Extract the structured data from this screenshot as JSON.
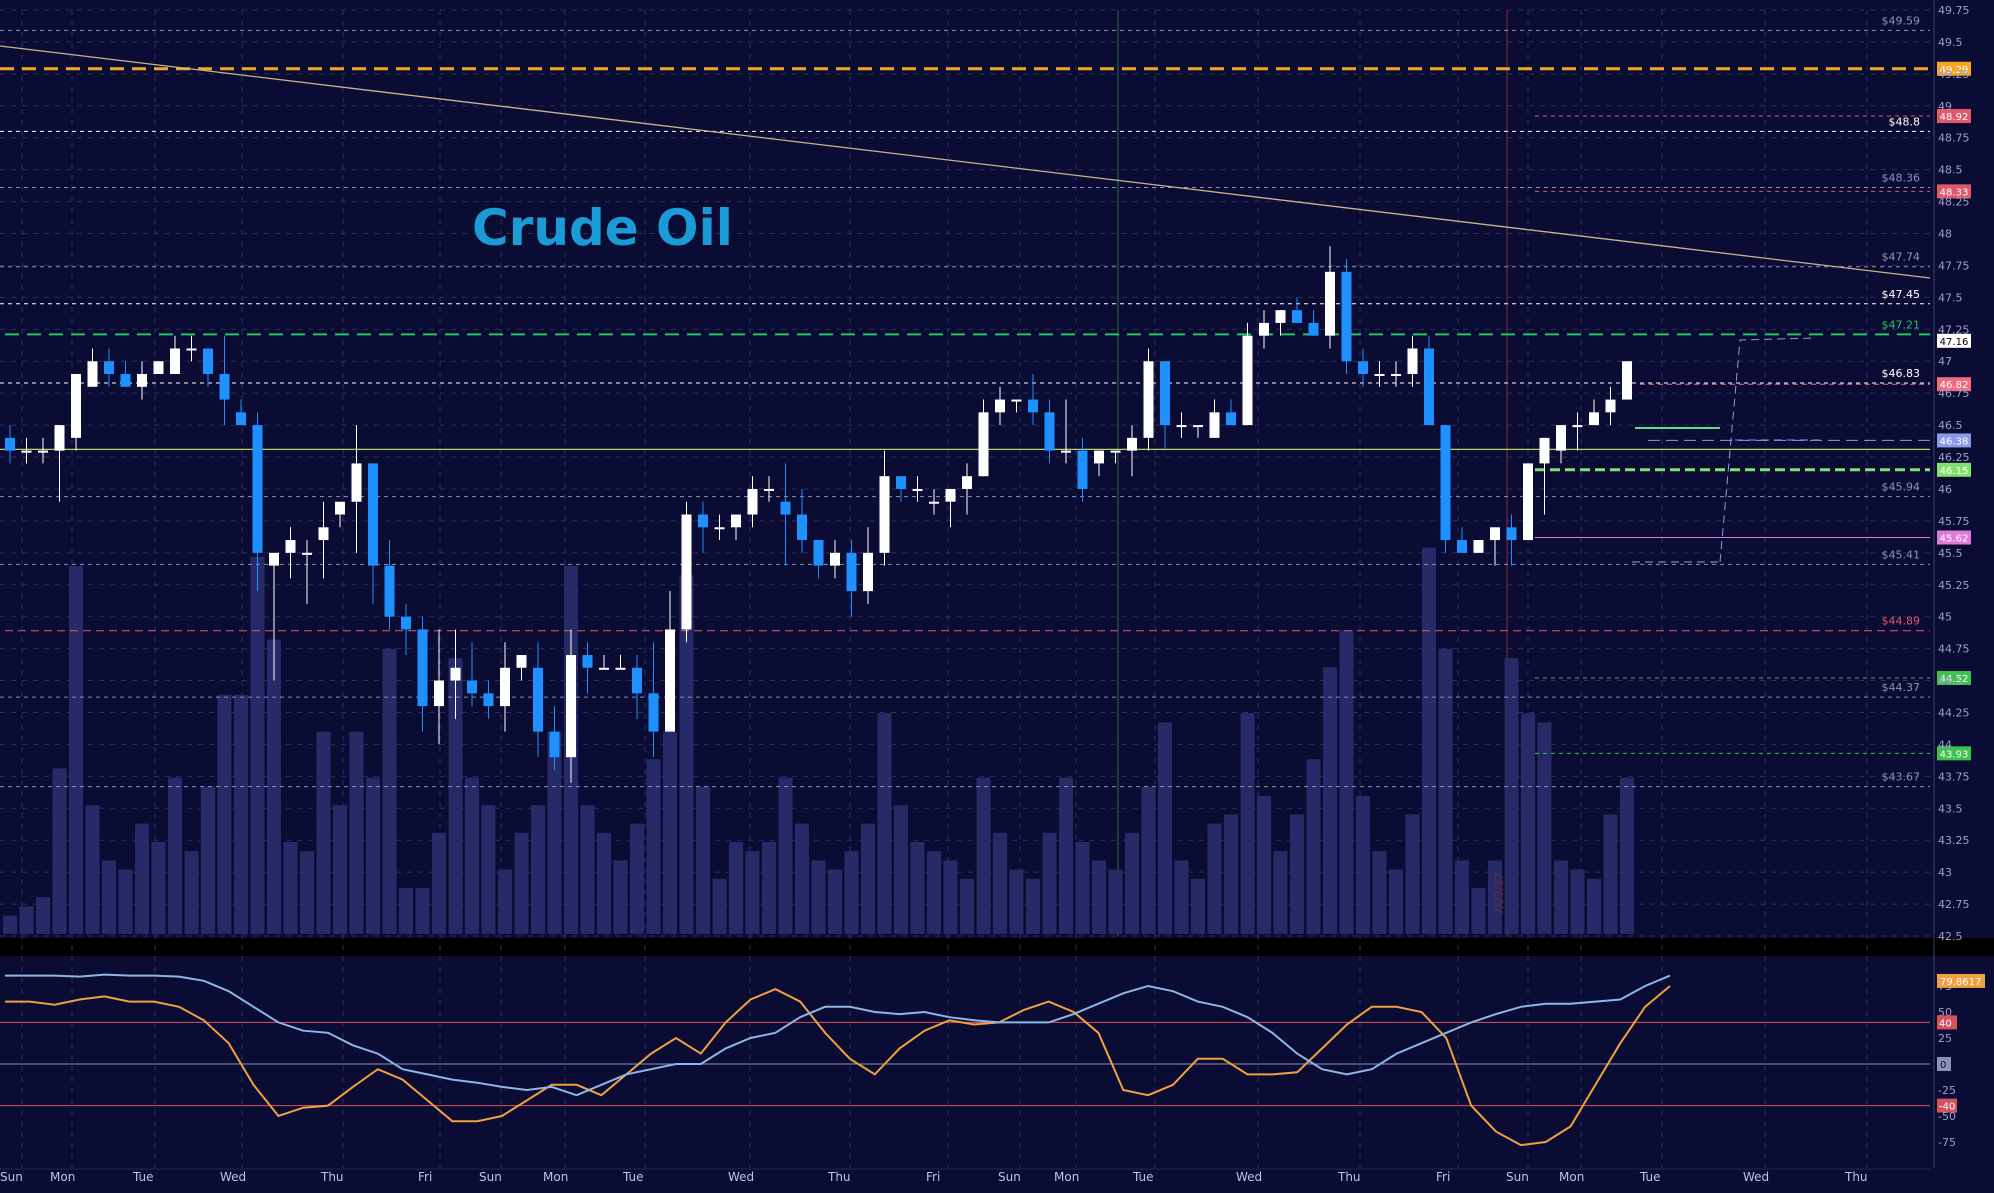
{
  "chart_data": [
    {
      "type": "candlestick",
      "title": "Crude Oil",
      "ylim": [
        42.5,
        49.75
      ],
      "y_ticks": [
        "49.75",
        "49.5",
        "49.25",
        "49",
        "48.75",
        "48.5",
        "48.25",
        "48",
        "47.75",
        "47.5",
        "47.25",
        "47",
        "46.75",
        "46.5",
        "46.25",
        "46",
        "45.75",
        "45.5",
        "45.25",
        "45",
        "44.75",
        "44.5",
        "44.25",
        "44",
        "43.75",
        "43.5",
        "43.25",
        "43",
        "42.75",
        "42.5"
      ],
      "day_labels": [
        "Sun",
        "Mon",
        "Tue",
        "Wed",
        "Thu",
        "Fri",
        "Sun",
        "Mon",
        "Tue",
        "Wed",
        "Thu",
        "Fri",
        "Sun",
        "Mon",
        "Tue",
        "Wed",
        "Thu",
        "Fri",
        "Sun",
        "Mon",
        "Tue",
        "Wed",
        "Thu"
      ],
      "date_marker": "7/23/17",
      "candles": [
        {
          "o": 46.4,
          "h": 46.5,
          "l": 46.2,
          "c": 46.3,
          "v": 2
        },
        {
          "o": 46.3,
          "h": 46.4,
          "l": 46.2,
          "c": 46.3,
          "v": 3
        },
        {
          "o": 46.3,
          "h": 46.4,
          "l": 46.2,
          "c": 46.3,
          "v": 4
        },
        {
          "o": 46.3,
          "h": 46.5,
          "l": 45.9,
          "c": 46.5,
          "v": 18
        },
        {
          "o": 46.4,
          "h": 46.9,
          "l": 46.3,
          "c": 46.9,
          "v": 40
        },
        {
          "o": 46.8,
          "h": 47.1,
          "l": 46.8,
          "c": 47.0,
          "v": 14
        },
        {
          "o": 47.0,
          "h": 47.1,
          "l": 46.8,
          "c": 46.9,
          "v": 8
        },
        {
          "o": 46.9,
          "h": 47.0,
          "l": 46.8,
          "c": 46.8,
          "v": 7
        },
        {
          "o": 46.8,
          "h": 47.0,
          "l": 46.7,
          "c": 46.9,
          "v": 12
        },
        {
          "o": 46.9,
          "h": 47.0,
          "l": 46.9,
          "c": 47.0,
          "v": 10
        },
        {
          "o": 46.9,
          "h": 47.2,
          "l": 46.9,
          "c": 47.1,
          "v": 17
        },
        {
          "o": 47.1,
          "h": 47.2,
          "l": 47.0,
          "c": 47.1,
          "v": 9
        },
        {
          "o": 47.1,
          "h": 47.1,
          "l": 46.8,
          "c": 46.9,
          "v": 16
        },
        {
          "o": 46.9,
          "h": 47.2,
          "l": 46.5,
          "c": 46.7,
          "v": 26
        },
        {
          "o": 46.6,
          "h": 46.7,
          "l": 46.5,
          "c": 46.5,
          "v": 26
        },
        {
          "o": 46.5,
          "h": 46.6,
          "l": 45.2,
          "c": 45.5,
          "v": 41
        },
        {
          "o": 45.4,
          "h": 45.5,
          "l": 44.5,
          "c": 45.5,
          "v": 32
        },
        {
          "o": 45.5,
          "h": 45.7,
          "l": 45.3,
          "c": 45.6,
          "v": 10
        },
        {
          "o": 45.5,
          "h": 45.6,
          "l": 45.1,
          "c": 45.5,
          "v": 9
        },
        {
          "o": 45.6,
          "h": 45.9,
          "l": 45.3,
          "c": 45.7,
          "v": 22
        },
        {
          "o": 45.8,
          "h": 45.9,
          "l": 45.7,
          "c": 45.9,
          "v": 14
        },
        {
          "o": 45.9,
          "h": 46.5,
          "l": 45.5,
          "c": 46.2,
          "v": 22
        },
        {
          "o": 46.2,
          "h": 46.2,
          "l": 45.1,
          "c": 45.4,
          "v": 17
        },
        {
          "o": 45.4,
          "h": 45.6,
          "l": 44.9,
          "c": 45.0,
          "v": 31
        },
        {
          "o": 45.0,
          "h": 45.1,
          "l": 44.7,
          "c": 44.9,
          "v": 5
        },
        {
          "o": 44.9,
          "h": 45.0,
          "l": 44.1,
          "c": 44.3,
          "v": 5
        },
        {
          "o": 44.3,
          "h": 44.9,
          "l": 44.0,
          "c": 44.5,
          "v": 11
        },
        {
          "o": 44.5,
          "h": 44.9,
          "l": 44.2,
          "c": 44.6,
          "v": 30
        },
        {
          "o": 44.5,
          "h": 44.8,
          "l": 44.3,
          "c": 44.4,
          "v": 17
        },
        {
          "o": 44.4,
          "h": 44.5,
          "l": 44.2,
          "c": 44.3,
          "v": 14
        },
        {
          "o": 44.3,
          "h": 44.8,
          "l": 44.1,
          "c": 44.6,
          "v": 7
        },
        {
          "o": 44.6,
          "h": 44.7,
          "l": 44.5,
          "c": 44.7,
          "v": 11
        },
        {
          "o": 44.6,
          "h": 44.8,
          "l": 43.9,
          "c": 44.1,
          "v": 14
        },
        {
          "o": 44.1,
          "h": 44.3,
          "l": 43.8,
          "c": 43.9,
          "v": 22
        },
        {
          "o": 43.9,
          "h": 44.9,
          "l": 43.7,
          "c": 44.7,
          "v": 40
        },
        {
          "o": 44.7,
          "h": 44.8,
          "l": 44.4,
          "c": 44.6,
          "v": 14
        },
        {
          "o": 44.6,
          "h": 44.7,
          "l": 44.6,
          "c": 44.6,
          "v": 11
        },
        {
          "o": 44.6,
          "h": 44.7,
          "l": 44.6,
          "c": 44.6,
          "v": 8
        },
        {
          "o": 44.6,
          "h": 44.7,
          "l": 44.2,
          "c": 44.4,
          "v": 12
        },
        {
          "o": 44.4,
          "h": 44.8,
          "l": 43.9,
          "c": 44.1,
          "v": 19
        },
        {
          "o": 44.1,
          "h": 45.2,
          "l": 44.1,
          "c": 44.9,
          "v": 22
        },
        {
          "o": 44.9,
          "h": 45.9,
          "l": 44.8,
          "c": 45.8,
          "v": 39
        },
        {
          "o": 45.8,
          "h": 45.9,
          "l": 45.5,
          "c": 45.7,
          "v": 16
        },
        {
          "o": 45.7,
          "h": 45.8,
          "l": 45.6,
          "c": 45.7,
          "v": 6
        },
        {
          "o": 45.7,
          "h": 45.8,
          "l": 45.6,
          "c": 45.8,
          "v": 10
        },
        {
          "o": 45.8,
          "h": 46.1,
          "l": 45.7,
          "c": 46.0,
          "v": 9
        },
        {
          "o": 46.0,
          "h": 46.1,
          "l": 45.9,
          "c": 46.0,
          "v": 10
        },
        {
          "o": 45.9,
          "h": 46.2,
          "l": 45.4,
          "c": 45.8,
          "v": 17
        },
        {
          "o": 45.8,
          "h": 46.0,
          "l": 45.5,
          "c": 45.6,
          "v": 12
        },
        {
          "o": 45.6,
          "h": 45.6,
          "l": 45.3,
          "c": 45.4,
          "v": 8
        },
        {
          "o": 45.4,
          "h": 45.6,
          "l": 45.3,
          "c": 45.5,
          "v": 7
        },
        {
          "o": 45.5,
          "h": 45.6,
          "l": 45.0,
          "c": 45.2,
          "v": 9
        },
        {
          "o": 45.2,
          "h": 45.7,
          "l": 45.1,
          "c": 45.5,
          "v": 12
        },
        {
          "o": 45.5,
          "h": 46.3,
          "l": 45.4,
          "c": 46.1,
          "v": 24
        },
        {
          "o": 46.1,
          "h": 46.1,
          "l": 45.9,
          "c": 46.0,
          "v": 14
        },
        {
          "o": 46.0,
          "h": 46.1,
          "l": 45.9,
          "c": 46.0,
          "v": 10
        },
        {
          "o": 45.9,
          "h": 46.0,
          "l": 45.8,
          "c": 45.9,
          "v": 9
        },
        {
          "o": 45.9,
          "h": 46.0,
          "l": 45.7,
          "c": 46.0,
          "v": 8
        },
        {
          "o": 46.0,
          "h": 46.2,
          "l": 45.8,
          "c": 46.1,
          "v": 6
        },
        {
          "o": 46.1,
          "h": 46.7,
          "l": 46.1,
          "c": 46.6,
          "v": 17
        },
        {
          "o": 46.6,
          "h": 46.8,
          "l": 46.5,
          "c": 46.7,
          "v": 11
        },
        {
          "o": 46.7,
          "h": 46.7,
          "l": 46.6,
          "c": 46.7,
          "v": 7
        },
        {
          "o": 46.7,
          "h": 46.9,
          "l": 46.5,
          "c": 46.6,
          "v": 6
        },
        {
          "o": 46.6,
          "h": 46.7,
          "l": 46.2,
          "c": 46.3,
          "v": 11
        },
        {
          "o": 46.3,
          "h": 46.7,
          "l": 46.2,
          "c": 46.3,
          "v": 17
        },
        {
          "o": 46.3,
          "h": 46.4,
          "l": 45.9,
          "c": 46.0,
          "v": 10
        },
        {
          "o": 46.2,
          "h": 46.3,
          "l": 46.1,
          "c": 46.3,
          "v": 8
        },
        {
          "o": 46.3,
          "h": 46.3,
          "l": 46.2,
          "c": 46.3,
          "v": 7
        },
        {
          "o": 46.3,
          "h": 46.5,
          "l": 46.1,
          "c": 46.4,
          "v": 11
        },
        {
          "o": 46.4,
          "h": 47.1,
          "l": 46.3,
          "c": 47.0,
          "v": 16
        },
        {
          "o": 47.0,
          "h": 47.0,
          "l": 46.3,
          "c": 46.5,
          "v": 23
        },
        {
          "o": 46.5,
          "h": 46.6,
          "l": 46.4,
          "c": 46.5,
          "v": 8
        },
        {
          "o": 46.5,
          "h": 46.5,
          "l": 46.4,
          "c": 46.5,
          "v": 6
        },
        {
          "o": 46.4,
          "h": 46.7,
          "l": 46.4,
          "c": 46.6,
          "v": 12
        },
        {
          "o": 46.6,
          "h": 46.7,
          "l": 46.5,
          "c": 46.5,
          "v": 13
        },
        {
          "o": 46.5,
          "h": 47.3,
          "l": 46.5,
          "c": 47.2,
          "v": 24
        },
        {
          "o": 47.2,
          "h": 47.4,
          "l": 47.1,
          "c": 47.3,
          "v": 15
        },
        {
          "o": 47.3,
          "h": 47.4,
          "l": 47.2,
          "c": 47.4,
          "v": 9
        },
        {
          "o": 47.4,
          "h": 47.5,
          "l": 47.3,
          "c": 47.3,
          "v": 13
        },
        {
          "o": 47.3,
          "h": 47.4,
          "l": 47.2,
          "c": 47.2,
          "v": 19
        },
        {
          "o": 47.2,
          "h": 47.9,
          "l": 47.1,
          "c": 47.7,
          "v": 29
        },
        {
          "o": 47.7,
          "h": 47.8,
          "l": 46.9,
          "c": 47.0,
          "v": 33
        },
        {
          "o": 47.0,
          "h": 47.1,
          "l": 46.8,
          "c": 46.9,
          "v": 15
        },
        {
          "o": 46.9,
          "h": 47.0,
          "l": 46.8,
          "c": 46.9,
          "v": 9
        },
        {
          "o": 46.9,
          "h": 47.0,
          "l": 46.8,
          "c": 46.9,
          "v": 7
        },
        {
          "o": 46.9,
          "h": 47.2,
          "l": 46.8,
          "c": 47.1,
          "v": 13
        },
        {
          "o": 47.1,
          "h": 47.2,
          "l": 46.5,
          "c": 46.5,
          "v": 42
        },
        {
          "o": 46.5,
          "h": 46.5,
          "l": 45.5,
          "c": 45.6,
          "v": 31
        },
        {
          "o": 45.6,
          "h": 45.7,
          "l": 45.5,
          "c": 45.5,
          "v": 8
        },
        {
          "o": 45.5,
          "h": 45.6,
          "l": 45.5,
          "c": 45.6,
          "v": 5
        },
        {
          "o": 45.6,
          "h": 45.7,
          "l": 45.4,
          "c": 45.7,
          "v": 8
        },
        {
          "o": 45.7,
          "h": 45.8,
          "l": 45.4,
          "c": 45.6,
          "v": 30
        },
        {
          "o": 45.6,
          "h": 46.2,
          "l": 45.6,
          "c": 46.2,
          "v": 24
        },
        {
          "o": 46.2,
          "h": 46.4,
          "l": 45.8,
          "c": 46.4,
          "v": 23
        },
        {
          "o": 46.3,
          "h": 46.5,
          "l": 46.2,
          "c": 46.5,
          "v": 8
        },
        {
          "o": 46.5,
          "h": 46.6,
          "l": 46.3,
          "c": 46.5,
          "v": 7
        },
        {
          "o": 46.5,
          "h": 46.7,
          "l": 46.5,
          "c": 46.6,
          "v": 6
        },
        {
          "o": 46.6,
          "h": 46.8,
          "l": 46.5,
          "c": 46.7,
          "v": 13
        },
        {
          "o": 46.7,
          "h": 47.0,
          "l": 46.7,
          "c": 47.0,
          "v": 17
        }
      ],
      "levels": [
        {
          "price": 49.29,
          "label": "49.29",
          "color": "#f5a623",
          "style": "dashed-heavy"
        },
        {
          "price": 49.59,
          "label": "$49.59",
          "color": "#8a93b8"
        },
        {
          "price": 48.8,
          "label": "$48.8",
          "color": "#ffffff"
        },
        {
          "price": 48.92,
          "label": "48.92",
          "color": "#e0586b"
        },
        {
          "price": 48.36,
          "label": "$48.36",
          "color": "#8a93b8"
        },
        {
          "price": 48.33,
          "label": "48.33",
          "color": "#e0586b"
        },
        {
          "price": 47.74,
          "label": "$47.74",
          "color": "#8a93b8"
        },
        {
          "price": 47.45,
          "label": "$47.45",
          "color": "#ffffff"
        },
        {
          "price": 47.21,
          "label": "$47.21",
          "color": "#22c55e"
        },
        {
          "price": 47.16,
          "label": "47.16",
          "color": "#ffffff"
        },
        {
          "price": 46.83,
          "label": "$46.83",
          "color": "#ffffff"
        },
        {
          "price": 46.82,
          "label": "46.82",
          "color": "#f06a80"
        },
        {
          "price": 46.38,
          "label": "46.38",
          "color": "#8c9be8"
        },
        {
          "price": 46.15,
          "label": "46.15",
          "color": "#7ee26c"
        },
        {
          "price": 45.94,
          "label": "$45.94",
          "color": "#8a93b8"
        },
        {
          "price": 45.62,
          "label": "45.62",
          "color": "#e07ad8"
        },
        {
          "price": 45.41,
          "label": "$45.41",
          "color": "#8a93b8"
        },
        {
          "price": 44.89,
          "label": "$44.89",
          "color": "#e0586b"
        },
        {
          "price": 44.52,
          "label": "44.52",
          "color": "#3dc24d"
        },
        {
          "price": 44.37,
          "label": "$44.37",
          "color": "#8a93b8"
        },
        {
          "price": 43.93,
          "label": "43.93",
          "color": "#3dc24d"
        },
        {
          "price": 43.67,
          "label": "$43.67",
          "color": "#8a93b8"
        }
      ]
    },
    {
      "type": "line",
      "name": "stochastic",
      "ylim": [
        -100,
        100
      ],
      "y_ticks": [
        "75",
        "50",
        "40",
        "25",
        "0",
        "-25",
        "-40",
        "-50",
        "-75"
      ],
      "current_value": "79.8617",
      "bands": [
        40,
        0,
        -40
      ],
      "series": [
        {
          "color": "#f0a040",
          "values": [
            60,
            60,
            57,
            62,
            65,
            60,
            60,
            55,
            42,
            20,
            -20,
            -50,
            -42,
            -40,
            -22,
            -5,
            -15,
            -35,
            -55,
            -55,
            -50,
            -35,
            -20,
            -20,
            -30,
            -10,
            10,
            25,
            10,
            40,
            62,
            72,
            60,
            30,
            5,
            -10,
            15,
            32,
            42,
            38,
            40,
            52,
            60,
            50,
            30,
            -25,
            -30,
            -20,
            5,
            5,
            -10,
            -10,
            -8,
            15,
            38,
            55,
            55,
            50,
            25,
            -40,
            -65,
            -78,
            -75,
            -60,
            -20,
            20,
            55,
            75
          ]
        },
        {
          "color": "#8db5e6",
          "values": [
            85,
            85,
            85,
            84,
            86,
            85,
            85,
            84,
            80,
            70,
            55,
            40,
            32,
            30,
            18,
            10,
            -5,
            -10,
            -15,
            -18,
            -22,
            -25,
            -22,
            -30,
            -20,
            -10,
            -5,
            0,
            0,
            15,
            25,
            30,
            45,
            55,
            55,
            50,
            48,
            50,
            45,
            42,
            40,
            40,
            40,
            48,
            58,
            68,
            75,
            70,
            60,
            55,
            45,
            30,
            10,
            -5,
            -10,
            -5,
            10,
            20,
            30,
            40,
            48,
            55,
            58,
            58,
            60,
            62,
            75,
            85
          ]
        }
      ]
    }
  ]
}
